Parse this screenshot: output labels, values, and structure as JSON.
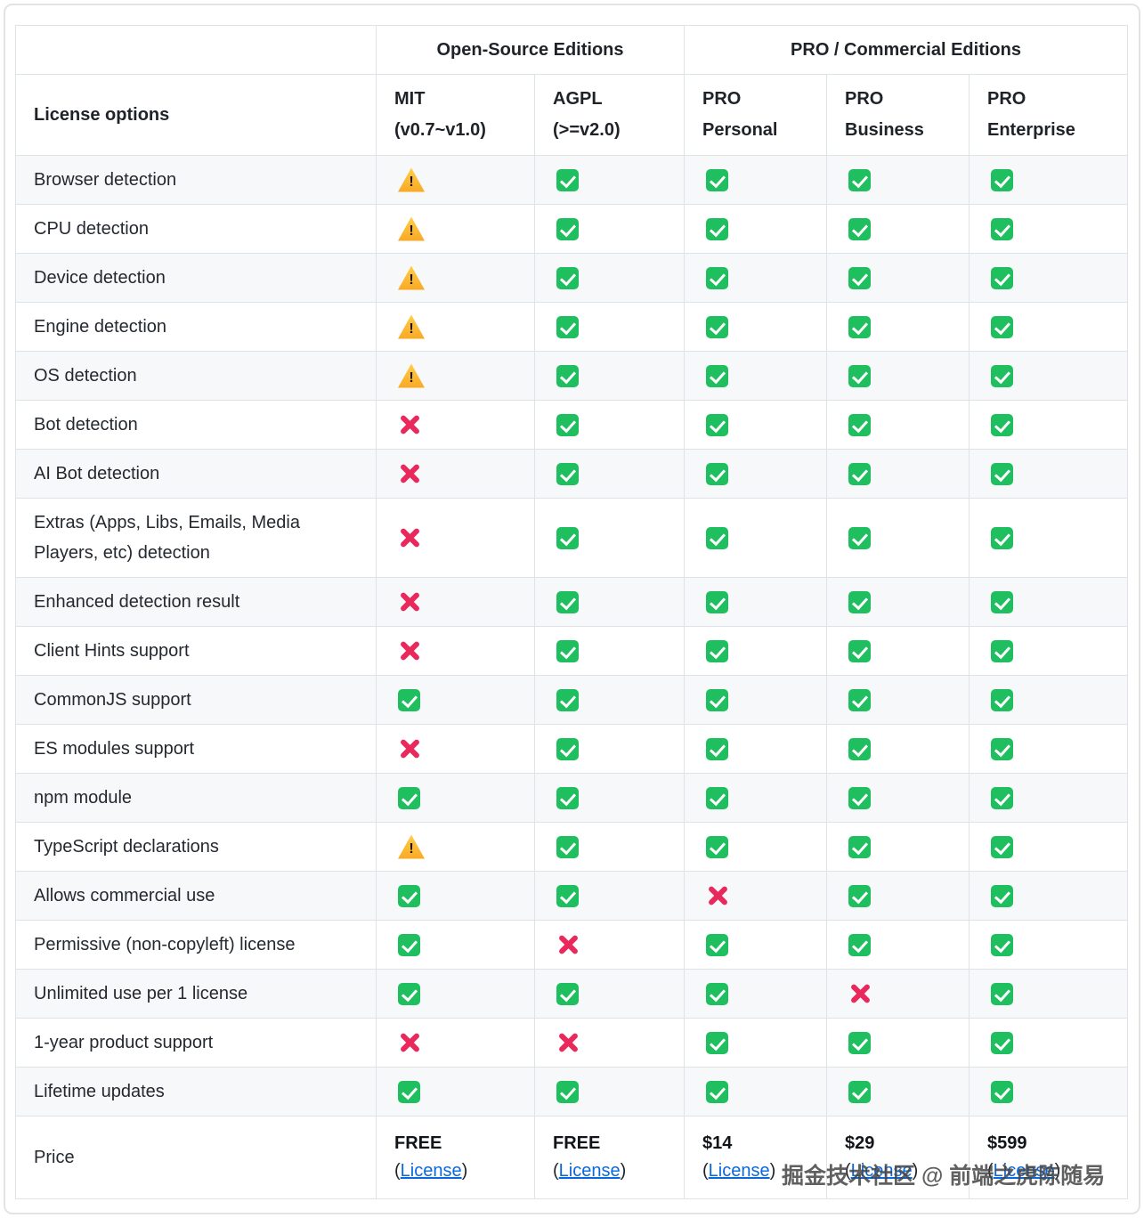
{
  "header": {
    "groups": [
      {
        "label": "Open-Source Editions"
      },
      {
        "label": "PRO / Commercial Editions"
      }
    ],
    "feature_column": "License options",
    "columns": [
      {
        "title": "MIT",
        "sub": "(v0.7~v1.0)"
      },
      {
        "title": "AGPL",
        "sub": "(>=v2.0)"
      },
      {
        "title": "PRO",
        "sub": "Personal"
      },
      {
        "title": "PRO",
        "sub": "Business"
      },
      {
        "title": "PRO",
        "sub": "Enterprise"
      }
    ]
  },
  "rows": [
    {
      "feature": "Browser detection",
      "cells": [
        "warn",
        "check",
        "check",
        "check",
        "check"
      ]
    },
    {
      "feature": "CPU detection",
      "cells": [
        "warn",
        "check",
        "check",
        "check",
        "check"
      ]
    },
    {
      "feature": "Device detection",
      "cells": [
        "warn",
        "check",
        "check",
        "check",
        "check"
      ]
    },
    {
      "feature": "Engine detection",
      "cells": [
        "warn",
        "check",
        "check",
        "check",
        "check"
      ]
    },
    {
      "feature": "OS detection",
      "cells": [
        "warn",
        "check",
        "check",
        "check",
        "check"
      ]
    },
    {
      "feature": "Bot detection",
      "cells": [
        "cross",
        "check",
        "check",
        "check",
        "check"
      ]
    },
    {
      "feature": "AI Bot detection",
      "cells": [
        "cross",
        "check",
        "check",
        "check",
        "check"
      ]
    },
    {
      "feature": "Extras (Apps, Libs, Emails, Media Players, etc) detection",
      "cells": [
        "cross",
        "check",
        "check",
        "check",
        "check"
      ]
    },
    {
      "feature": "Enhanced detection result",
      "cells": [
        "cross",
        "check",
        "check",
        "check",
        "check"
      ]
    },
    {
      "feature": "Client Hints support",
      "cells": [
        "cross",
        "check",
        "check",
        "check",
        "check"
      ]
    },
    {
      "feature": "CommonJS support",
      "cells": [
        "check",
        "check",
        "check",
        "check",
        "check"
      ]
    },
    {
      "feature": "ES modules support",
      "cells": [
        "cross",
        "check",
        "check",
        "check",
        "check"
      ]
    },
    {
      "feature": "npm module",
      "cells": [
        "check",
        "check",
        "check",
        "check",
        "check"
      ]
    },
    {
      "feature": "TypeScript declarations",
      "cells": [
        "warn",
        "check",
        "check",
        "check",
        "check"
      ]
    },
    {
      "feature": "Allows commercial use",
      "cells": [
        "check",
        "check",
        "cross",
        "check",
        "check"
      ]
    },
    {
      "feature": "Permissive (non-copyleft) license",
      "cells": [
        "check",
        "cross",
        "check",
        "check",
        "check"
      ]
    },
    {
      "feature": "Unlimited use per 1 license",
      "cells": [
        "check",
        "check",
        "check",
        "cross",
        "check"
      ]
    },
    {
      "feature": "1-year product support",
      "cells": [
        "cross",
        "cross",
        "check",
        "check",
        "check"
      ]
    },
    {
      "feature": "Lifetime updates",
      "cells": [
        "check",
        "check",
        "check",
        "check",
        "check"
      ]
    }
  ],
  "price": {
    "feature": "Price",
    "cells": [
      {
        "amount": "FREE",
        "license_link": "License"
      },
      {
        "amount": "FREE",
        "license_link": "License"
      },
      {
        "amount": "$14",
        "license_link": "License"
      },
      {
        "amount": "$29",
        "license_link": "License"
      },
      {
        "amount": "$599",
        "license_link": "License"
      }
    ]
  },
  "watermark": "掘金技术社区 @ 前端之虎陈随易",
  "colors": {
    "check_green": "#1fbe5f",
    "cross_red": "#e9295c",
    "warn_yellow": "#ffce45",
    "link_blue": "#0a69da",
    "stripe_gray": "#f6f8fa",
    "border_gray": "#dee3e8",
    "frame_gray": "#e3e3e3"
  }
}
